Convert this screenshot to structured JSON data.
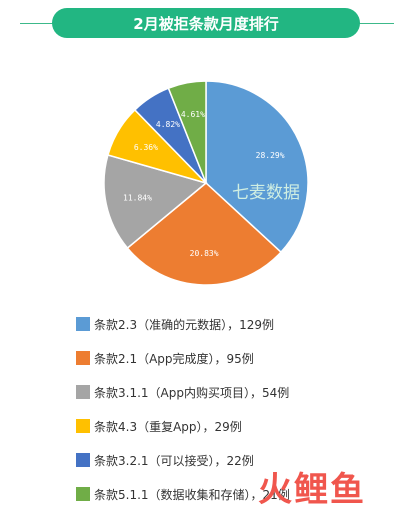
{
  "header": {
    "title": "2月被拒条款月度排行"
  },
  "watermark": {
    "text": "七麦数据",
    "logo_text": "火鲤鱼"
  },
  "colors": {
    "header_bg": "#22b682"
  },
  "chart_data": {
    "type": "pie",
    "slices": [
      {
        "name": "条款2.3（准确的元数据），129例",
        "value": 129,
        "percent_label": "28.29%",
        "color": "#5b9bd5"
      },
      {
        "name": "条款2.1（App完成度），95例",
        "value": 95,
        "percent_label": "20.83%",
        "color": "#ed7d31"
      },
      {
        "name": "条款3.1.1（App内购买项目），54例",
        "value": 54,
        "percent_label": "11.84%",
        "color": "#a5a5a5"
      },
      {
        "name": "条款4.3（重复App），29例",
        "value": 29,
        "percent_label": "6.36%",
        "color": "#ffc000"
      },
      {
        "name": "条款3.2.1（可以接受），22例",
        "value": 22,
        "percent_label": "4.82%",
        "color": "#4472c4"
      },
      {
        "name": "条款5.1.1（数据收集和存储），21例",
        "value": 21,
        "percent_label": "4.61%",
        "color": "#70ad47"
      }
    ],
    "legend_position": "bottom"
  }
}
